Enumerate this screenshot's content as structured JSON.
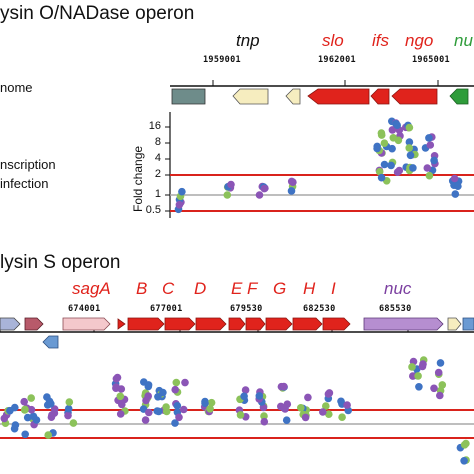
{
  "top": {
    "title": "ysin O/NADase operon",
    "side_labels": [
      "nome",
      "nscription",
      "infection"
    ],
    "coords": [
      "1959001",
      "1962001",
      "1965001"
    ],
    "genes": [
      {
        "name": "tnp",
        "color": "#111111"
      },
      {
        "name": "slo",
        "color": "#e0231c"
      },
      {
        "name": "ifs",
        "color": "#e0231c"
      },
      {
        "name": "ngo",
        "color": "#e0231c"
      },
      {
        "name": "nu",
        "color": "#2e9c3a"
      }
    ],
    "y_axis_label": "Fold change",
    "y_ticks": [
      "16",
      "8",
      "4",
      "2",
      "1",
      "0.5"
    ]
  },
  "bottom": {
    "title": "lysin S operon",
    "coords": [
      "674001",
      "677001",
      "679530",
      "682530",
      "685530"
    ],
    "genes": [
      {
        "name": "sagA",
        "color": "#e0231c"
      },
      {
        "name": "B",
        "color": "#e0231c"
      },
      {
        "name": "C",
        "color": "#e0231c"
      },
      {
        "name": "D",
        "color": "#e0231c"
      },
      {
        "name": "E",
        "color": "#e0231c"
      },
      {
        "name": "F",
        "color": "#e0231c"
      },
      {
        "name": "G",
        "color": "#e0231c"
      },
      {
        "name": "H",
        "color": "#e0231c"
      },
      {
        "name": "I",
        "color": "#e0231c"
      },
      {
        "name": "nuc",
        "color": "#7b3fa0"
      }
    ]
  },
  "colors": {
    "threshold_line": "#d9231c",
    "baseline": "#a8a8a8",
    "operon_gene": "#e0231c",
    "tnp_gene": "#f6edbf",
    "upstream_gene": "#6e8c8a",
    "nuc_gene": "#b68ed0",
    "dot_purple": "#8b55b6",
    "dot_blue": "#3f73c4",
    "dot_green": "#8cc25a"
  }
}
